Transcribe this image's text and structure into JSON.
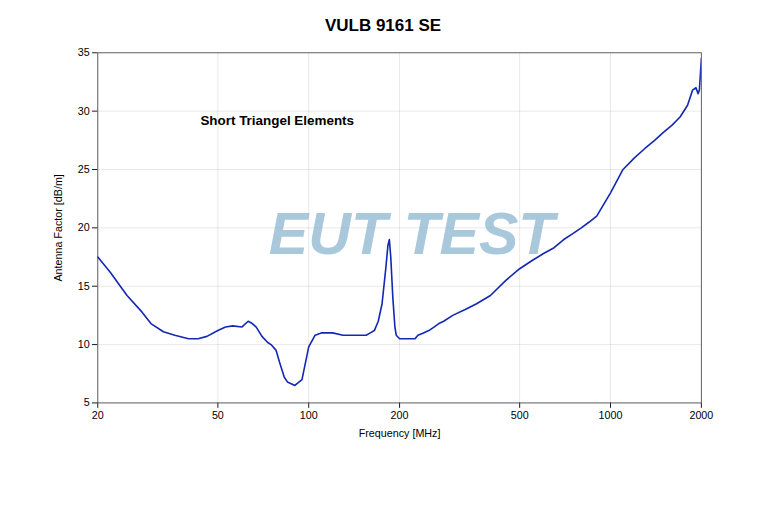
{
  "chart_data": {
    "type": "line",
    "title": "VULB 9161 SE",
    "x_label": "Frequency [MHz]",
    "y_label": "Antenna Factor [dB/m]",
    "annotations": [
      {
        "text": "Short Triangel Elements",
        "color": "black"
      },
      {
        "text": "EUT TEST",
        "color": "#7baac8"
      }
    ],
    "color": "#1428b4",
    "log": "x",
    "grid": true,
    "xlim": [
      20,
      2000
    ],
    "ylim": [
      5,
      35
    ],
    "xticks": [
      20,
      50,
      100,
      200,
      500,
      1000,
      2000
    ],
    "yticks": [
      5,
      10,
      15,
      20,
      25,
      30,
      35
    ],
    "x": [
      20,
      22,
      25,
      28,
      30,
      33,
      36,
      40,
      43,
      46,
      50,
      53,
      56,
      60,
      63,
      65,
      67,
      70,
      73,
      75,
      78,
      80,
      83,
      85,
      90,
      95,
      100,
      105,
      110,
      120,
      130,
      140,
      150,
      155,
      160,
      165,
      170,
      175,
      180,
      183,
      185,
      187,
      190,
      193,
      195,
      200,
      205,
      210,
      215,
      220,
      225,
      230,
      240,
      250,
      260,
      270,
      280,
      300,
      330,
      360,
      400,
      450,
      500,
      550,
      600,
      650,
      700,
      750,
      800,
      850,
      900,
      1000,
      1100,
      1200,
      1300,
      1400,
      1500,
      1600,
      1700,
      1800,
      1870,
      1920,
      1950,
      1970,
      2000
    ],
    "values": [
      17.5,
      16.2,
      14.2,
      12.8,
      11.8,
      11.1,
      10.8,
      10.5,
      10.5,
      10.7,
      11.2,
      11.5,
      11.6,
      11.5,
      12.0,
      11.8,
      11.5,
      10.7,
      10.2,
      10.0,
      9.5,
      8.5,
      7.2,
      6.8,
      6.5,
      7.0,
      9.8,
      10.8,
      11.0,
      11.0,
      10.8,
      10.8,
      10.8,
      10.8,
      11.0,
      11.2,
      12.0,
      13.5,
      16.5,
      18.5,
      19.0,
      17.5,
      14.0,
      11.5,
      10.8,
      10.5,
      10.5,
      10.5,
      10.5,
      10.5,
      10.5,
      10.8,
      11.0,
      11.2,
      11.5,
      11.8,
      12.0,
      12.5,
      13.0,
      13.5,
      14.2,
      15.5,
      16.5,
      17.2,
      17.8,
      18.3,
      19.0,
      19.5,
      20.0,
      20.5,
      21.0,
      23.0,
      25.0,
      26.0,
      26.8,
      27.5,
      28.2,
      28.8,
      29.5,
      30.5,
      31.8,
      32.0,
      31.5,
      31.8,
      34.5
    ]
  }
}
